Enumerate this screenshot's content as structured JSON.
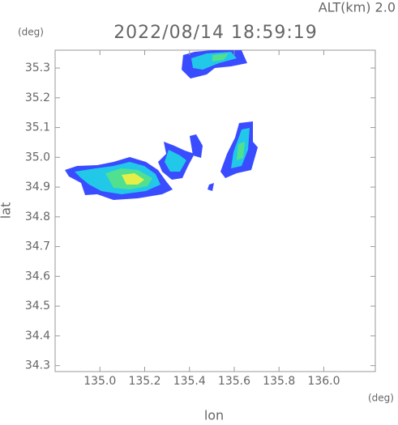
{
  "chart_data": {
    "type": "map",
    "title": "2022/08/14 18:59:19",
    "subtitle": "ALT(km) 2.0",
    "x_label": "lon",
    "y_label": "lat",
    "x_unit": "(deg)",
    "y_unit": "(deg)",
    "xlim": [
      134.8,
      136.23
    ],
    "ylim": [
      34.28,
      35.36
    ],
    "xticks": [
      {
        "value": 135,
        "label": "135.0"
      },
      135.2,
      135.4,
      135.6,
      135.8,
      {
        "value": 136,
        "label": "136.0"
      }
    ],
    "yticks": [
      34.3,
      34.4,
      34.5,
      34.6,
      34.7,
      34.8,
      34.9,
      {
        "value": 35,
        "label": "35.0"
      },
      35.1,
      35.2,
      35.3
    ]
  }
}
